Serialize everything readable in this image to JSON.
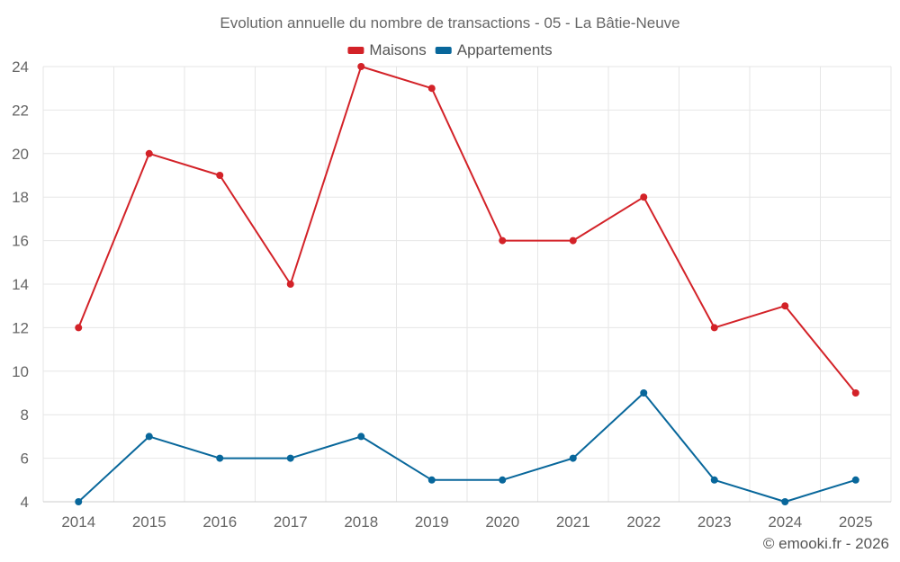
{
  "chart_data": {
    "type": "line",
    "title": "Evolution annuelle du nombre de transactions - 05 - La Bâtie-Neuve",
    "categories": [
      "2014",
      "2015",
      "2016",
      "2017",
      "2018",
      "2019",
      "2020",
      "2021",
      "2022",
      "2023",
      "2024",
      "2025"
    ],
    "series": [
      {
        "name": "Maisons",
        "color": "#d32228",
        "values": [
          12,
          20,
          19,
          14,
          24,
          23,
          16,
          16,
          18,
          12,
          13,
          9
        ]
      },
      {
        "name": "Appartements",
        "color": "#08679b",
        "values": [
          4,
          7,
          6,
          6,
          7,
          5,
          5,
          6,
          9,
          5,
          4,
          5
        ]
      }
    ],
    "ylim": [
      4,
      24
    ],
    "yticks": [
      "4",
      "6",
      "8",
      "10",
      "12",
      "14",
      "16",
      "18",
      "20",
      "22",
      "24"
    ],
    "grid": true,
    "legend": "top-center",
    "xlabel": "",
    "ylabel": ""
  },
  "credit": "© emooki.fr - 2026"
}
